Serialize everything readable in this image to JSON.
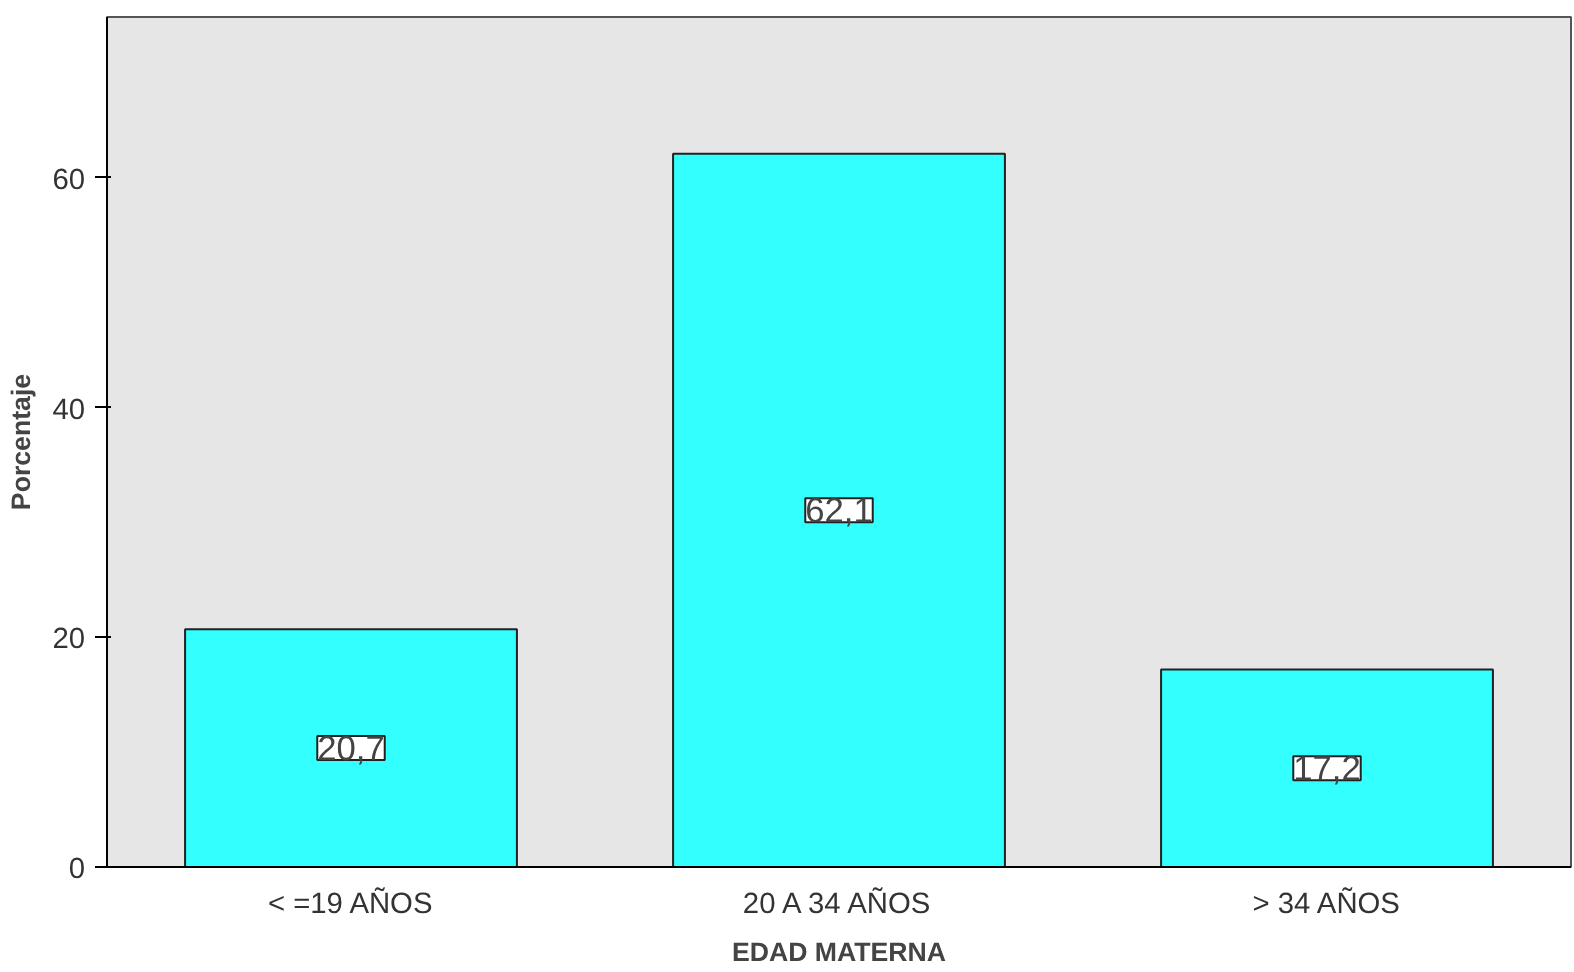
{
  "chart_data": {
    "type": "bar",
    "xlabel": "EDAD MATERNA",
    "ylabel": "Porcentaje",
    "categories": [
      "< =19 AÑOS",
      "20 A 34 AÑOS",
      "> 34 AÑOS"
    ],
    "values": [
      20.7,
      62.1,
      17.2
    ],
    "value_labels": [
      "20,7",
      "62,1",
      "17,2"
    ],
    "color": "#33ffff",
    "ylim": [
      0,
      74
    ],
    "yticks": [
      0,
      20,
      40,
      60
    ],
    "grid": false
  }
}
